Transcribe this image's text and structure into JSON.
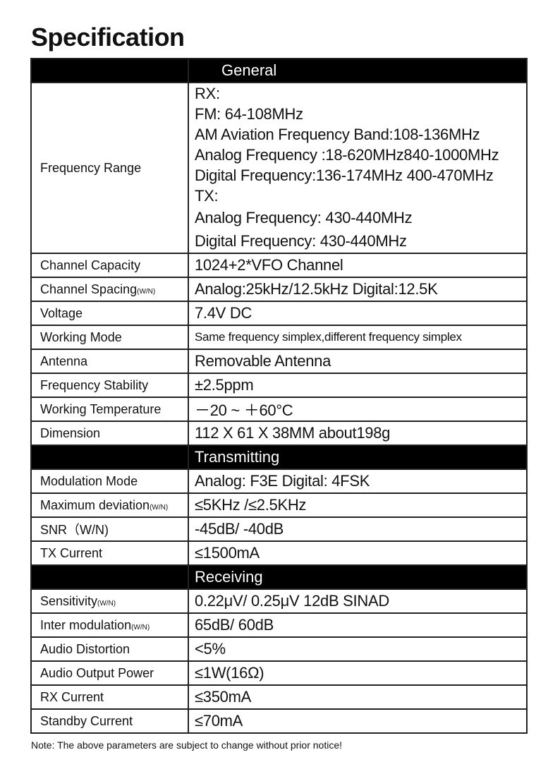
{
  "title": "Specification",
  "sections": [
    {
      "name": "General"
    },
    {
      "name": "Transmitting"
    },
    {
      "name": "Receiving"
    }
  ],
  "frequency_range": {
    "label": "Frequency Range",
    "lines": [
      "RX:",
      "FM:  64-108MHz",
      "AM Aviation Frequency Band:108-136MHz",
      "Analog Frequency :18-620MHz840-1000MHz",
      "Digital Frequency:136-174MHz  400-470MHz",
      "TX:",
      "Analog Frequency: 430-440MHz",
      "Digital Frequency: 430-440MHz"
    ]
  },
  "general_rows": [
    {
      "label": "Channel Capacity",
      "suffix": "",
      "value": "1024+2*VFO Channel"
    },
    {
      "label": "Channel Spacing",
      "suffix": "(W/N)",
      "value": "Analog:25kHz/12.5kHz  Digital:12.5K"
    },
    {
      "label": "Voltage",
      "suffix": "",
      "value": "7.4V DC"
    },
    {
      "label": "Working Mode",
      "suffix": "",
      "value": "Same frequency simplex,different frequency simplex"
    },
    {
      "label": "Antenna",
      "suffix": "",
      "value": "Removable Antenna"
    },
    {
      "label": "Frequency Stability",
      "suffix": "",
      "value": "±2.5ppm"
    },
    {
      "label": "Working Temperature",
      "suffix": "",
      "value": "－20 ~ ＋60°C"
    },
    {
      "label": "Dimension",
      "suffix": "",
      "value": "112 X 61 X 38MM   about198g"
    }
  ],
  "transmitting_rows": [
    {
      "label": "Modulation Mode",
      "suffix": "",
      "value": "Analog:  F3E  Digital:  4FSK"
    },
    {
      "label": "Maximum deviation",
      "suffix": "(W/N)",
      "value": "≤5KHz /≤2.5KHz"
    },
    {
      "label": "SNR（W/N)",
      "suffix": "",
      "value": "-45dB/ -40dB"
    },
    {
      "label": "TX Current",
      "suffix": "",
      "value": "≤1500mA"
    }
  ],
  "receiving_rows": [
    {
      "label": "Sensitivity",
      "suffix": "(W/N)",
      "value": "0.22μV/ 0.25μV     12dB SINAD"
    },
    {
      "label": "Inter modulation",
      "suffix": "(W/N)",
      "value": "65dB/ 60dB"
    },
    {
      "label": "Audio Distortion",
      "suffix": "",
      "value": "<5%"
    },
    {
      "label": "Audio Output Power",
      "suffix": "",
      "value": "≤1W(16Ω)"
    },
    {
      "label": "RX Current",
      "suffix": "",
      "value": "≤350mA"
    },
    {
      "label": "Standby Current",
      "suffix": "",
      "value": "≤70mA"
    }
  ],
  "note": "Note: The above parameters are subject to change without prior notice!"
}
